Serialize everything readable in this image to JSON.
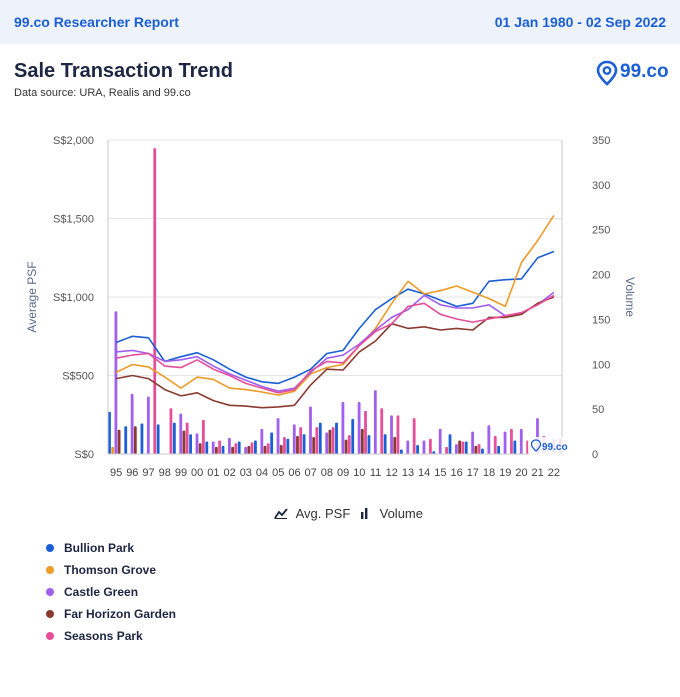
{
  "header": {
    "brand": "99.co Researcher Report",
    "date_range": "01 Jan 1980 - 02 Sep 2022"
  },
  "report": {
    "title": "Sale Transaction Trend",
    "source": "Data source: URA, Realis and 99.co",
    "logo_text": "99.co",
    "watermark": "99.co"
  },
  "legend": {
    "avg_psf": "Avg. PSF",
    "volume": "Volume"
  },
  "colors": {
    "Bullion Park": "#1a5fd6",
    "Thomson Grove": "#ee9a27",
    "Castle Green": "#a15ff0",
    "Far Horizon Garden": "#8b3a2f",
    "Seasons Park": "#e64e9a"
  },
  "chart_data": {
    "type": "bar+line",
    "title": "Sale Transaction Trend",
    "ylabel": "Average PSF",
    "y2label": "Volume",
    "ylim": [
      0,
      2000
    ],
    "y2lim": [
      0,
      350
    ],
    "yticks": [
      "S$0",
      "S$500",
      "S$1,000",
      "S$1,500",
      "S$2,000"
    ],
    "y2ticks": [
      "0",
      "50",
      "100",
      "150",
      "200",
      "250",
      "300",
      "350"
    ],
    "categories": [
      "95",
      "96",
      "97",
      "98",
      "99",
      "00",
      "01",
      "02",
      "03",
      "04",
      "05",
      "06",
      "07",
      "08",
      "09",
      "10",
      "11",
      "12",
      "13",
      "14",
      "15",
      "16",
      "17",
      "18",
      "19",
      "20",
      "21",
      "22"
    ],
    "series": [
      {
        "name": "Bullion Park",
        "psf": [
          710,
          750,
          740,
          590,
          620,
          645,
          600,
          540,
          490,
          460,
          450,
          490,
          540,
          640,
          660,
          800,
          920,
          990,
          1050,
          1020,
          980,
          940,
          960,
          1100,
          1110,
          1115,
          1250,
          1290
        ],
        "volume": [
          47,
          31,
          34,
          33,
          35,
          22,
          14,
          9,
          14,
          15,
          24,
          17,
          22,
          35,
          35,
          39,
          21,
          22,
          5,
          10,
          3,
          22,
          14,
          6,
          9,
          15,
          null,
          null
        ]
      },
      {
        "name": "Thomson Grove",
        "psf": [
          520,
          570,
          555,
          490,
          420,
          490,
          475,
          420,
          410,
          395,
          375,
          400,
          510,
          550,
          570,
          690,
          800,
          960,
          1100,
          1020,
          1040,
          1070,
          1030,
          990,
          940,
          1220,
          1360,
          1520
        ],
        "volume": [
          8,
          null,
          null,
          null,
          null,
          null,
          null,
          null,
          null,
          null,
          null,
          null,
          null,
          null,
          null,
          null,
          null,
          null,
          null,
          null,
          null,
          null,
          null,
          null,
          null,
          null,
          null,
          null
        ]
      },
      {
        "name": "Castle Green",
        "psf": [
          650,
          660,
          640,
          590,
          600,
          620,
          560,
          510,
          470,
          430,
          400,
          420,
          520,
          610,
          630,
          700,
          790,
          870,
          920,
          1010,
          950,
          930,
          930,
          950,
          880,
          900,
          950,
          1030
        ],
        "volume": [
          159,
          67,
          64,
          null,
          45,
          23,
          14,
          18,
          8,
          28,
          40,
          33,
          53,
          24,
          58,
          58,
          71,
          43,
          15,
          15,
          28,
          11,
          25,
          32,
          25,
          28,
          40,
          17
        ]
      },
      {
        "name": "Far Horizon Garden",
        "psf": [
          480,
          500,
          480,
          410,
          370,
          390,
          340,
          310,
          305,
          295,
          300,
          310,
          440,
          540,
          535,
          650,
          720,
          830,
          800,
          810,
          790,
          800,
          790,
          870,
          870,
          890,
          960,
          1000
        ],
        "volume": [
          27,
          31,
          null,
          null,
          26,
          12,
          8,
          8,
          9,
          9,
          10,
          20,
          19,
          27,
          16,
          28,
          null,
          19,
          null,
          null,
          null,
          15,
          9,
          null,
          null,
          null,
          null,
          null
        ]
      },
      {
        "name": "Seasons Park",
        "psf": [
          610,
          630,
          640,
          560,
          550,
          600,
          540,
          500,
          450,
          420,
          390,
          410,
          530,
          590,
          580,
          690,
          780,
          830,
          940,
          960,
          890,
          860,
          840,
          860,
          880,
          900,
          950,
          1010
        ],
        "volume": [
          null,
          null,
          341,
          51,
          35,
          38,
          15,
          12,
          13,
          12,
          19,
          30,
          30,
          30,
          21,
          48,
          51,
          43,
          40,
          17,
          8,
          14,
          11,
          20,
          28,
          15,
          20,
          18
        ]
      }
    ]
  }
}
